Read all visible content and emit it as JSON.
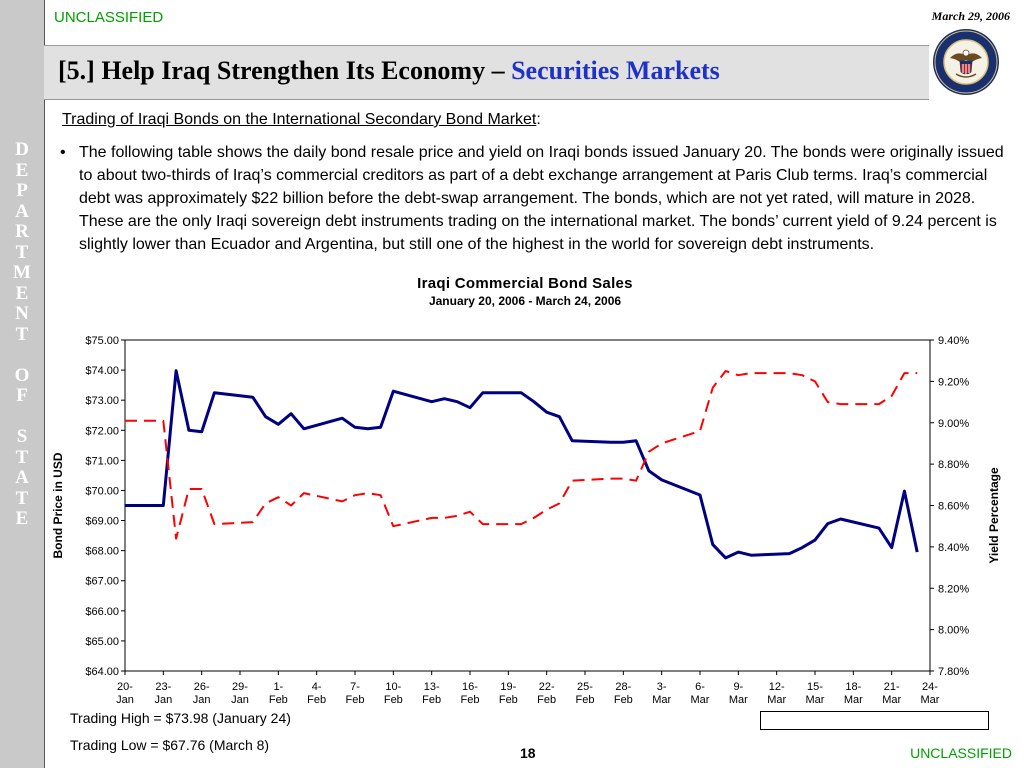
{
  "slide": {
    "classification_top": "UNCLASSIFIED",
    "classification_bottom": "UNCLASSIFIED",
    "date": "March 29, 2006",
    "title_main": "[5.] Help Iraq Strengthen Its Economy – ",
    "title_accent": "Securities Markets",
    "sidebar_text": "DEPARTMENT OF STATE",
    "subheading_underlined": "Trading of Iraqi Bonds on the International Secondary Bond Market",
    "subheading_colon": ":",
    "bullet_symbol": "•",
    "bullet_text": "The following table shows the daily bond resale price and yield on Iraqi bonds issued January 20.  The bonds were originally issued to about two-thirds of Iraq’s commercial creditors as part of a debt exchange arrangement at Paris Club terms.  Iraq’s commercial debt was approximately $22 billion before the debt-swap arrangement. The bonds, which are not yet rated, will mature in 2028.  These are the only Iraqi sovereign debt instruments trading on the international market.  The bonds’ current yield of 9.24 percent is slightly lower than Ecuador and Argentina, but still one of the highest in the world for sovereign debt instruments.",
    "note_high": "Trading High = $73.98 (January 24)",
    "note_low": "Trading Low = $67.76 (March 8)",
    "page_number": "18",
    "seal_icon": "department-of-state-seal-icon"
  },
  "colors": {
    "classification": "#00a000",
    "title_accent": "#1f32c8",
    "bond_price": "#000080",
    "yield": "#ff0000",
    "sidebar": "#c9c9c9"
  },
  "chart_data": {
    "type": "line",
    "title": "Iraqi Commercial Bond Sales",
    "subtitle": "January 20, 2006 - March 24, 2006",
    "xlabel": "",
    "ylabel": "Bond Price in USD",
    "ylabel_right": "Yield Percentage",
    "ylim": [
      64,
      75
    ],
    "ylim_right": [
      7.8,
      9.4
    ],
    "yticks": [
      "$64.00",
      "$65.00",
      "$66.00",
      "$67.00",
      "$68.00",
      "$69.00",
      "$70.00",
      "$71.00",
      "$72.00",
      "$73.00",
      "$74.00",
      "$75.00"
    ],
    "yticks_right": [
      "7.80%",
      "8.00%",
      "8.20%",
      "8.40%",
      "8.60%",
      "8.80%",
      "9.00%",
      "9.20%",
      "9.40%"
    ],
    "x_ticks": [
      "20-Jan",
      "23-Jan",
      "26-Jan",
      "29-Jan",
      "1-Feb",
      "4-Feb",
      "7-Feb",
      "10-Feb",
      "13-Feb",
      "16-Feb",
      "19-Feb",
      "22-Feb",
      "25-Feb",
      "28-Feb",
      "3-Mar",
      "6-Mar",
      "9-Mar",
      "12-Mar",
      "15-Mar",
      "18-Mar",
      "21-Mar",
      "24-Mar"
    ],
    "grid": false,
    "legend_position": "bottom-right",
    "series": [
      {
        "name": "Bond Price",
        "axis": "left",
        "style": "solid",
        "points": [
          [
            "2006-01-20",
            69.5
          ],
          [
            "2006-01-23",
            69.5
          ],
          [
            "2006-01-24",
            73.98
          ],
          [
            "2006-01-25",
            72.0
          ],
          [
            "2006-01-26",
            71.95
          ],
          [
            "2006-01-27",
            73.25
          ],
          [
            "2006-01-30",
            73.1
          ],
          [
            "2006-01-31",
            72.45
          ],
          [
            "2006-02-01",
            72.2
          ],
          [
            "2006-02-02",
            72.55
          ],
          [
            "2006-02-03",
            72.05
          ],
          [
            "2006-02-06",
            72.4
          ],
          [
            "2006-02-07",
            72.1
          ],
          [
            "2006-02-08",
            72.05
          ],
          [
            "2006-02-09",
            72.1
          ],
          [
            "2006-02-10",
            73.3
          ],
          [
            "2006-02-13",
            72.95
          ],
          [
            "2006-02-14",
            73.05
          ],
          [
            "2006-02-15",
            72.95
          ],
          [
            "2006-02-16",
            72.75
          ],
          [
            "2006-02-17",
            73.25
          ],
          [
            "2006-02-20",
            73.25
          ],
          [
            "2006-02-21",
            72.95
          ],
          [
            "2006-02-22",
            72.6
          ],
          [
            "2006-02-23",
            72.45
          ],
          [
            "2006-02-24",
            71.65
          ],
          [
            "2006-02-27",
            71.6
          ],
          [
            "2006-02-28",
            71.6
          ],
          [
            "2006-03-01",
            71.65
          ],
          [
            "2006-03-02",
            70.65
          ],
          [
            "2006-03-03",
            70.35
          ],
          [
            "2006-03-06",
            69.85
          ],
          [
            "2006-03-07",
            68.2
          ],
          [
            "2006-03-08",
            67.76
          ],
          [
            "2006-03-09",
            67.95
          ],
          [
            "2006-03-10",
            67.85
          ],
          [
            "2006-03-13",
            67.9
          ],
          [
            "2006-03-14",
            68.1
          ],
          [
            "2006-03-15",
            68.35
          ],
          [
            "2006-03-16",
            68.9
          ],
          [
            "2006-03-17",
            69.05
          ],
          [
            "2006-03-20",
            68.75
          ],
          [
            "2006-03-21",
            68.1
          ],
          [
            "2006-03-22",
            69.98
          ],
          [
            "2006-03-23",
            67.95
          ]
        ]
      },
      {
        "name": "Yield",
        "axis": "right",
        "style": "dashed",
        "points": [
          [
            "2006-01-20",
            9.01
          ],
          [
            "2006-01-23",
            9.01
          ],
          [
            "2006-01-24",
            8.44
          ],
          [
            "2006-01-25",
            8.68
          ],
          [
            "2006-01-26",
            8.68
          ],
          [
            "2006-01-27",
            8.51
          ],
          [
            "2006-01-30",
            8.52
          ],
          [
            "2006-01-31",
            8.61
          ],
          [
            "2006-02-01",
            8.64
          ],
          [
            "2006-02-02",
            8.6
          ],
          [
            "2006-02-03",
            8.66
          ],
          [
            "2006-02-06",
            8.62
          ],
          [
            "2006-02-07",
            8.65
          ],
          [
            "2006-02-08",
            8.66
          ],
          [
            "2006-02-09",
            8.65
          ],
          [
            "2006-02-10",
            8.5
          ],
          [
            "2006-02-13",
            8.54
          ],
          [
            "2006-02-14",
            8.54
          ],
          [
            "2006-02-15",
            8.55
          ],
          [
            "2006-02-16",
            8.57
          ],
          [
            "2006-02-17",
            8.51
          ],
          [
            "2006-02-20",
            8.51
          ],
          [
            "2006-02-21",
            8.54
          ],
          [
            "2006-02-22",
            8.58
          ],
          [
            "2006-02-23",
            8.61
          ],
          [
            "2006-02-24",
            8.72
          ],
          [
            "2006-02-27",
            8.73
          ],
          [
            "2006-02-28",
            8.73
          ],
          [
            "2006-03-01",
            8.72
          ],
          [
            "2006-03-02",
            8.86
          ],
          [
            "2006-03-03",
            8.9
          ],
          [
            "2006-03-06",
            8.96
          ],
          [
            "2006-03-07",
            9.17
          ],
          [
            "2006-03-08",
            9.25
          ],
          [
            "2006-03-09",
            9.23
          ],
          [
            "2006-03-10",
            9.24
          ],
          [
            "2006-03-13",
            9.24
          ],
          [
            "2006-03-14",
            9.23
          ],
          [
            "2006-03-15",
            9.2
          ],
          [
            "2006-03-16",
            9.1
          ],
          [
            "2006-03-17",
            9.09
          ],
          [
            "2006-03-20",
            9.09
          ],
          [
            "2006-03-21",
            9.13
          ],
          [
            "2006-03-22",
            9.24
          ],
          [
            "2006-03-23",
            9.24
          ]
        ]
      }
    ]
  }
}
